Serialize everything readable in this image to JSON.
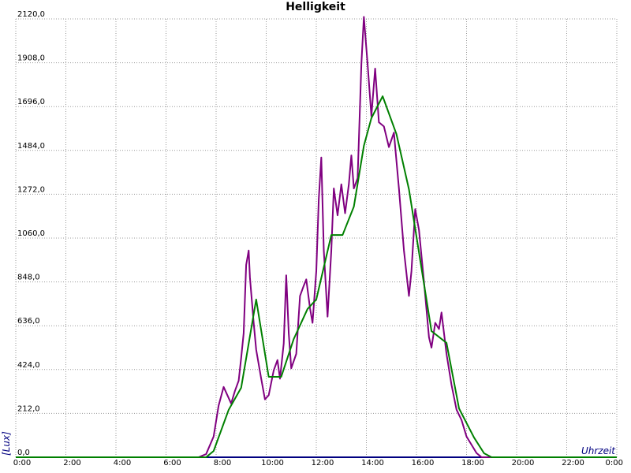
{
  "chart_data": {
    "type": "line",
    "title": "Helligkeit",
    "xlabel": "Uhrzeit",
    "ylabel": "[Lux]",
    "xlim": [
      0,
      24
    ],
    "ylim": [
      0,
      2120
    ],
    "xticks": [
      {
        "value": 0,
        "label": "0:00"
      },
      {
        "value": 2,
        "label": "2:00"
      },
      {
        "value": 4,
        "label": "4:00"
      },
      {
        "value": 6,
        "label": "6:00"
      },
      {
        "value": 8,
        "label": "8:00"
      },
      {
        "value": 10,
        "label": "10:00"
      },
      {
        "value": 12,
        "label": "12:00"
      },
      {
        "value": 14,
        "label": "14:00"
      },
      {
        "value": 16,
        "label": "16:00"
      },
      {
        "value": 18,
        "label": "18:00"
      },
      {
        "value": 20,
        "label": "20:00"
      },
      {
        "value": 22,
        "label": "22:00"
      },
      {
        "value": 24,
        "label": "0:00"
      }
    ],
    "yticks": [
      {
        "value": 0,
        "label": "0,0"
      },
      {
        "value": 212,
        "label": "212,0"
      },
      {
        "value": 424,
        "label": "424,0"
      },
      {
        "value": 636,
        "label": "636,0"
      },
      {
        "value": 848,
        "label": "848,0"
      },
      {
        "value": 1060,
        "label": "1060,0"
      },
      {
        "value": 1272,
        "label": "1272,0"
      },
      {
        "value": 1484,
        "label": "1484,0"
      },
      {
        "value": 1696,
        "label": "1696,0"
      },
      {
        "value": 1908,
        "label": "1908,0"
      },
      {
        "value": 2120,
        "label": "2120,0"
      }
    ],
    "grid": true,
    "series": [
      {
        "color": "#800080",
        "x": [
          0,
          7.3,
          7.6,
          7.9,
          8.1,
          8.3,
          8.45,
          8.6,
          8.75,
          8.9,
          9.0,
          9.1,
          9.2,
          9.3,
          9.35,
          9.5,
          9.6,
          9.8,
          9.95,
          10.1,
          10.3,
          10.45,
          10.55,
          10.7,
          10.8,
          10.9,
          11.0,
          11.2,
          11.35,
          11.5,
          11.6,
          11.75,
          11.85,
          12.0,
          12.1,
          12.2,
          12.3,
          12.45,
          12.6,
          12.7,
          12.85,
          13.0,
          13.15,
          13.3,
          13.4,
          13.5,
          13.65,
          13.8,
          13.9,
          14.05,
          14.2,
          14.35,
          14.5,
          14.7,
          14.9,
          15.1,
          15.3,
          15.5,
          15.7,
          15.8,
          15.95,
          16.1,
          16.3,
          16.5,
          16.6,
          16.75,
          16.9,
          17.0,
          17.2,
          17.4,
          17.6,
          17.8,
          18.0,
          18.2,
          18.4,
          18.6,
          24
        ],
        "values": [
          0,
          0,
          15,
          100,
          250,
          340,
          300,
          260,
          320,
          370,
          480,
          600,
          930,
          1000,
          870,
          650,
          520,
          380,
          280,
          300,
          420,
          470,
          380,
          550,
          880,
          600,
          430,
          500,
          780,
          830,
          860,
          720,
          650,
          900,
          1250,
          1450,
          1000,
          680,
          1000,
          1300,
          1170,
          1320,
          1180,
          1320,
          1460,
          1300,
          1350,
          1900,
          2130,
          1900,
          1650,
          1880,
          1620,
          1600,
          1500,
          1570,
          1300,
          1000,
          780,
          900,
          1200,
          1100,
          850,
          580,
          530,
          650,
          620,
          700,
          500,
          350,
          230,
          180,
          100,
          60,
          20,
          0,
          0
        ]
      },
      {
        "color": "#008000",
        "x": [
          0,
          7.6,
          7.9,
          8.5,
          9.0,
          9.6,
          10.1,
          10.6,
          11.1,
          11.65,
          12.0,
          12.6,
          13.05,
          13.5,
          13.9,
          14.2,
          14.65,
          15.2,
          15.7,
          16.2,
          16.6,
          17.2,
          17.7,
          18.3,
          18.7,
          19.0,
          24
        ],
        "values": [
          0,
          0,
          30,
          229,
          336,
          763,
          389,
          389,
          572,
          717,
          763,
          1075,
          1075,
          1212,
          1506,
          1640,
          1746,
          1563,
          1296,
          915,
          610,
          553,
          236,
          95,
          19,
          0,
          0
        ]
      }
    ]
  }
}
